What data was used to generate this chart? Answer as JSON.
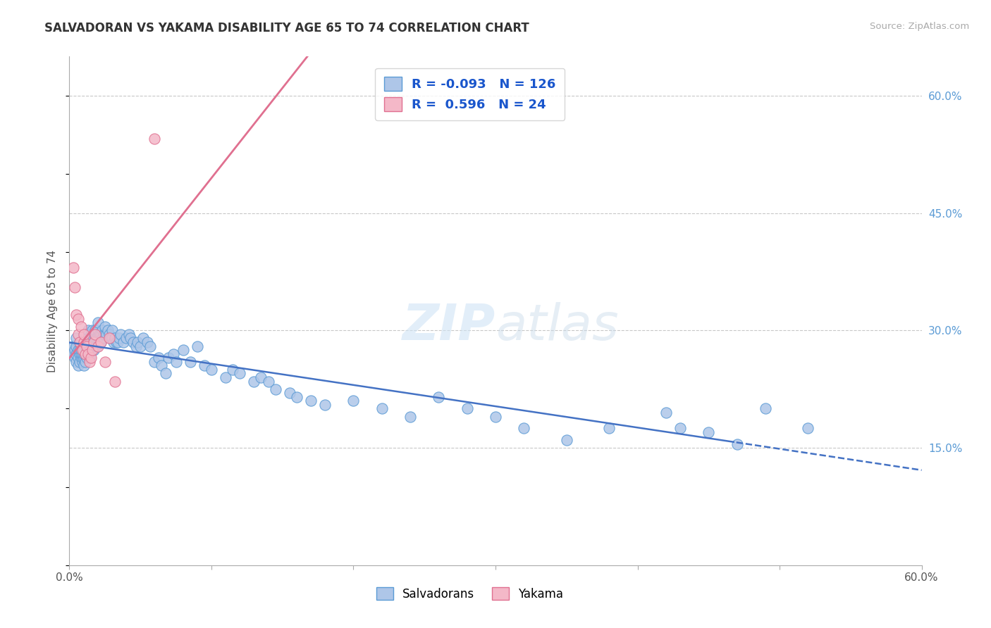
{
  "title": "SALVADORAN VS YAKAMA DISABILITY AGE 65 TO 74 CORRELATION CHART",
  "source_text": "Source: ZipAtlas.com",
  "ylabel": "Disability Age 65 to 74",
  "xlim": [
    0.0,
    0.6
  ],
  "ylim": [
    0.0,
    0.65
  ],
  "yticks_right": [
    0.15,
    0.3,
    0.45,
    0.6
  ],
  "ytick_labels_right": [
    "15.0%",
    "30.0%",
    "45.0%",
    "60.0%"
  ],
  "salvadoran_color": "#aec6e8",
  "salvadoran_edge": "#5b9bd5",
  "yakama_color": "#f4b8c8",
  "yakama_edge": "#e07090",
  "trend_blue_color": "#4472c4",
  "trend_pink_color": "#e07090",
  "legend_R1": "-0.093",
  "legend_N1": "126",
  "legend_R2": "0.596",
  "legend_N2": "24",
  "watermark": "ZIPatlas",
  "background_color": "#ffffff",
  "grid_color": "#c8c8c8",
  "sal_x": [
    0.002,
    0.003,
    0.004,
    0.004,
    0.005,
    0.005,
    0.005,
    0.005,
    0.006,
    0.006,
    0.006,
    0.007,
    0.007,
    0.007,
    0.007,
    0.008,
    0.008,
    0.008,
    0.008,
    0.009,
    0.009,
    0.009,
    0.009,
    0.01,
    0.01,
    0.01,
    0.01,
    0.01,
    0.011,
    0.011,
    0.011,
    0.012,
    0.012,
    0.012,
    0.013,
    0.013,
    0.013,
    0.013,
    0.014,
    0.014,
    0.014,
    0.015,
    0.015,
    0.015,
    0.016,
    0.016,
    0.016,
    0.017,
    0.017,
    0.018,
    0.018,
    0.019,
    0.019,
    0.02,
    0.02,
    0.02,
    0.021,
    0.021,
    0.022,
    0.022,
    0.023,
    0.023,
    0.024,
    0.025,
    0.025,
    0.026,
    0.027,
    0.028,
    0.029,
    0.03,
    0.03,
    0.031,
    0.032,
    0.033,
    0.034,
    0.035,
    0.036,
    0.038,
    0.04,
    0.042,
    0.043,
    0.045,
    0.047,
    0.048,
    0.05,
    0.052,
    0.055,
    0.057,
    0.06,
    0.063,
    0.065,
    0.068,
    0.07,
    0.073,
    0.075,
    0.08,
    0.085,
    0.09,
    0.095,
    0.1,
    0.11,
    0.115,
    0.12,
    0.13,
    0.135,
    0.14,
    0.145,
    0.155,
    0.16,
    0.17,
    0.18,
    0.2,
    0.22,
    0.24,
    0.26,
    0.28,
    0.3,
    0.32,
    0.35,
    0.38,
    0.42,
    0.43,
    0.45,
    0.47,
    0.49,
    0.52
  ],
  "sal_y": [
    0.27,
    0.28,
    0.265,
    0.275,
    0.26,
    0.27,
    0.28,
    0.29,
    0.255,
    0.265,
    0.275,
    0.26,
    0.27,
    0.275,
    0.285,
    0.265,
    0.27,
    0.275,
    0.285,
    0.26,
    0.265,
    0.27,
    0.28,
    0.255,
    0.265,
    0.27,
    0.275,
    0.285,
    0.26,
    0.27,
    0.28,
    0.265,
    0.275,
    0.285,
    0.27,
    0.28,
    0.29,
    0.3,
    0.265,
    0.275,
    0.285,
    0.275,
    0.285,
    0.295,
    0.28,
    0.29,
    0.3,
    0.275,
    0.285,
    0.29,
    0.3,
    0.28,
    0.29,
    0.29,
    0.3,
    0.31,
    0.285,
    0.295,
    0.285,
    0.295,
    0.29,
    0.3,
    0.295,
    0.295,
    0.305,
    0.295,
    0.3,
    0.295,
    0.29,
    0.29,
    0.3,
    0.285,
    0.29,
    0.285,
    0.285,
    0.29,
    0.295,
    0.285,
    0.29,
    0.295,
    0.29,
    0.285,
    0.28,
    0.285,
    0.28,
    0.29,
    0.285,
    0.28,
    0.26,
    0.265,
    0.255,
    0.245,
    0.265,
    0.27,
    0.26,
    0.275,
    0.26,
    0.28,
    0.255,
    0.25,
    0.24,
    0.25,
    0.245,
    0.235,
    0.24,
    0.235,
    0.225,
    0.22,
    0.215,
    0.21,
    0.205,
    0.21,
    0.2,
    0.19,
    0.215,
    0.2,
    0.19,
    0.175,
    0.16,
    0.175,
    0.195,
    0.175,
    0.17,
    0.155,
    0.2,
    0.175
  ],
  "yak_x": [
    0.003,
    0.004,
    0.005,
    0.006,
    0.006,
    0.007,
    0.008,
    0.009,
    0.01,
    0.01,
    0.011,
    0.012,
    0.013,
    0.014,
    0.015,
    0.016,
    0.017,
    0.018,
    0.02,
    0.022,
    0.025,
    0.028,
    0.032,
    0.06
  ],
  "yak_y": [
    0.38,
    0.355,
    0.32,
    0.295,
    0.315,
    0.285,
    0.305,
    0.275,
    0.285,
    0.295,
    0.27,
    0.28,
    0.27,
    0.26,
    0.265,
    0.275,
    0.285,
    0.295,
    0.28,
    0.285,
    0.26,
    0.29,
    0.235,
    0.545
  ]
}
